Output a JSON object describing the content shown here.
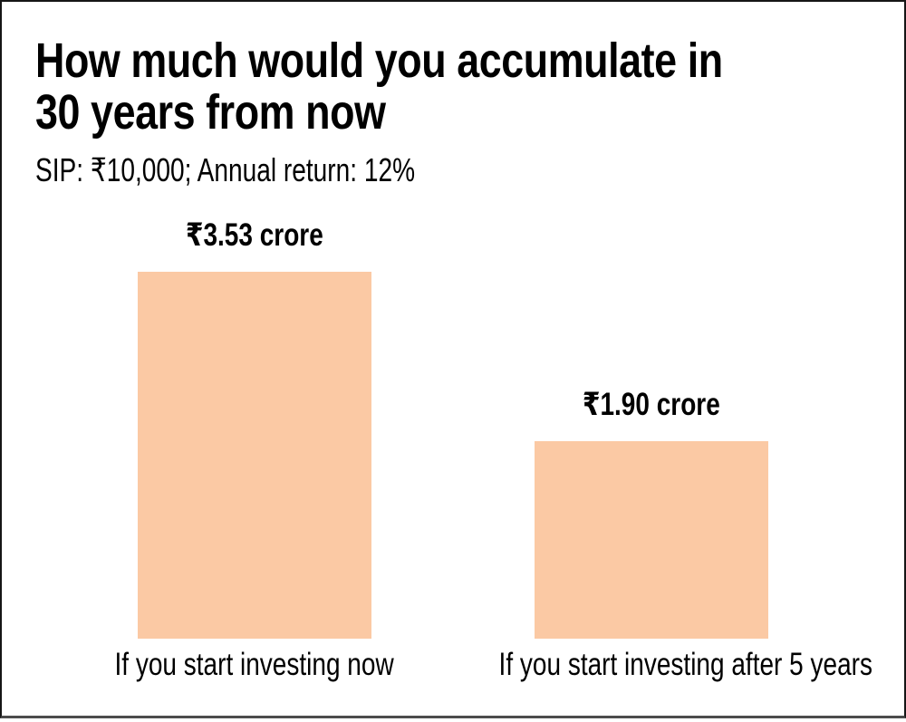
{
  "chart_data": {
    "type": "bar",
    "title": "How much would you accumulate in 30 years from now",
    "title_lines": [
      "How much would you accumulate in",
      "30 years from now"
    ],
    "subtitle": "SIP: ₹10,000; Annual return: 12%",
    "categories": [
      "If you start investing now",
      "If you start investing after 5 years"
    ],
    "values": [
      3.53,
      1.9
    ],
    "data_labels": [
      "₹3.53 crore",
      "₹1.90 crore"
    ],
    "unit": "₹ crore",
    "ylim": [
      0,
      3.53
    ],
    "grid": false,
    "legend": false,
    "axes_shown": false,
    "colors": {
      "bar": "#FBC9A4",
      "text": "#000000",
      "frame_border": "#161616",
      "bottom_rule": "#4C4C4C"
    }
  }
}
